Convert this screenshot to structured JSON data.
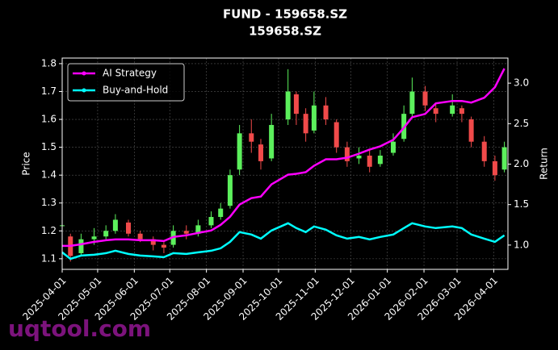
{
  "chart_data": {
    "type": "candlestick",
    "title": "FUND - 159658.SZ",
    "subtitle": "159658.SZ",
    "ylabel": "Price",
    "y2label": "Return",
    "watermark": "uqtool.com",
    "up_color": "#5cf05c",
    "down_color": "#f04a4a",
    "legend": "upper left",
    "grid": true,
    "x": [
      "2025-04-01",
      "2025-04-08",
      "2025-04-17",
      "2025-04-28",
      "2025-05-08",
      "2025-05-16",
      "2025-05-27",
      "2025-06-06",
      "2025-06-17",
      "2025-06-26",
      "2025-07-04",
      "2025-07-15",
      "2025-07-25",
      "2025-08-05",
      "2025-08-13",
      "2025-08-21",
      "2025-08-29",
      "2025-09-08",
      "2025-09-16",
      "2025-09-25",
      "2025-10-09",
      "2025-10-16",
      "2025-10-24",
      "2025-10-31",
      "2025-11-10",
      "2025-11-19",
      "2025-11-28",
      "2025-12-08",
      "2025-12-17",
      "2025-12-26",
      "2026-01-06",
      "2026-01-15",
      "2026-01-22",
      "2026-02-02",
      "2026-02-11",
      "2026-02-25",
      "2026-03-05",
      "2026-03-13",
      "2026-03-24",
      "2026-04-02",
      "2026-04-10"
    ],
    "open": [
      1.22,
      1.18,
      1.12,
      1.17,
      1.18,
      1.2,
      1.23,
      1.19,
      1.17,
      1.15,
      1.15,
      1.2,
      1.19,
      1.22,
      1.25,
      1.29,
      1.42,
      1.55,
      1.51,
      1.46,
      1.6,
      1.69,
      1.62,
      1.56,
      1.65,
      1.59,
      1.5,
      1.46,
      1.47,
      1.44,
      1.48,
      1.53,
      1.62,
      1.7,
      1.64,
      1.62,
      1.64,
      1.6,
      1.52,
      1.45,
      1.42
    ],
    "high": [
      1.24,
      1.19,
      1.19,
      1.21,
      1.22,
      1.26,
      1.24,
      1.2,
      1.18,
      1.16,
      1.22,
      1.22,
      1.24,
      1.27,
      1.3,
      1.42,
      1.58,
      1.6,
      1.53,
      1.62,
      1.78,
      1.7,
      1.64,
      1.7,
      1.68,
      1.6,
      1.52,
      1.5,
      1.49,
      1.49,
      1.55,
      1.65,
      1.75,
      1.72,
      1.66,
      1.69,
      1.65,
      1.61,
      1.54,
      1.47,
      1.52
    ],
    "low": [
      1.2,
      1.09,
      1.11,
      1.15,
      1.17,
      1.19,
      1.18,
      1.16,
      1.13,
      1.12,
      1.14,
      1.17,
      1.18,
      1.21,
      1.24,
      1.28,
      1.4,
      1.48,
      1.42,
      1.45,
      1.58,
      1.58,
      1.52,
      1.55,
      1.58,
      1.48,
      1.43,
      1.44,
      1.41,
      1.43,
      1.47,
      1.52,
      1.61,
      1.63,
      1.59,
      1.61,
      1.59,
      1.5,
      1.43,
      1.38,
      1.41
    ],
    "close": [
      1.22,
      1.11,
      1.17,
      1.18,
      1.2,
      1.24,
      1.19,
      1.17,
      1.15,
      1.14,
      1.2,
      1.19,
      1.22,
      1.25,
      1.28,
      1.4,
      1.55,
      1.52,
      1.45,
      1.58,
      1.7,
      1.62,
      1.55,
      1.65,
      1.6,
      1.5,
      1.45,
      1.47,
      1.43,
      1.47,
      1.52,
      1.62,
      1.7,
      1.65,
      1.62,
      1.65,
      1.62,
      1.52,
      1.45,
      1.4,
      1.5
    ],
    "series": [
      {
        "name": "AI Strategy",
        "color": "#ff00ff",
        "axis": "y2",
        "values": [
          0.99,
          0.99,
          1.01,
          1.04,
          1.06,
          1.07,
          1.07,
          1.06,
          1.06,
          1.05,
          1.1,
          1.12,
          1.15,
          1.18,
          1.25,
          1.35,
          1.5,
          1.58,
          1.6,
          1.75,
          1.87,
          1.88,
          1.9,
          1.98,
          2.06,
          2.06,
          2.08,
          2.13,
          2.18,
          2.22,
          2.3,
          2.45,
          2.58,
          2.62,
          2.75,
          2.78,
          2.78,
          2.76,
          2.82,
          2.95,
          3.18
        ]
      },
      {
        "name": "Buy-and-Hold",
        "color": "#00ffff",
        "axis": "y2",
        "values": [
          0.91,
          0.83,
          0.87,
          0.88,
          0.9,
          0.93,
          0.89,
          0.87,
          0.86,
          0.85,
          0.9,
          0.89,
          0.91,
          0.93,
          0.96,
          1.04,
          1.16,
          1.13,
          1.08,
          1.18,
          1.27,
          1.21,
          1.16,
          1.23,
          1.19,
          1.12,
          1.08,
          1.1,
          1.07,
          1.1,
          1.13,
          1.21,
          1.27,
          1.23,
          1.21,
          1.23,
          1.21,
          1.13,
          1.08,
          1.04,
          1.12
        ]
      }
    ],
    "xlim": [
      "2025-04-01",
      "2026-04-13"
    ],
    "xticks": [
      "2025-04-01",
      "2025-05-01",
      "2025-06-01",
      "2025-07-01",
      "2025-08-01",
      "2025-09-01",
      "2025-10-01",
      "2025-11-01",
      "2025-12-01",
      "2026-01-01",
      "2026-02-01",
      "2026-03-01",
      "2026-04-01"
    ],
    "ylim": [
      1.062,
      1.82
    ],
    "yticks": [
      1.1,
      1.2,
      1.3,
      1.4,
      1.5,
      1.6,
      1.7,
      1.8
    ],
    "y2lim": [
      0.7,
      3.31
    ],
    "y2ticks": [
      {
        "value": 1,
        "label": "1.0"
      },
      1.5,
      {
        "value": 2,
        "label": "2.0"
      },
      2.5,
      {
        "value": 3,
        "label": "3.0"
      }
    ]
  }
}
